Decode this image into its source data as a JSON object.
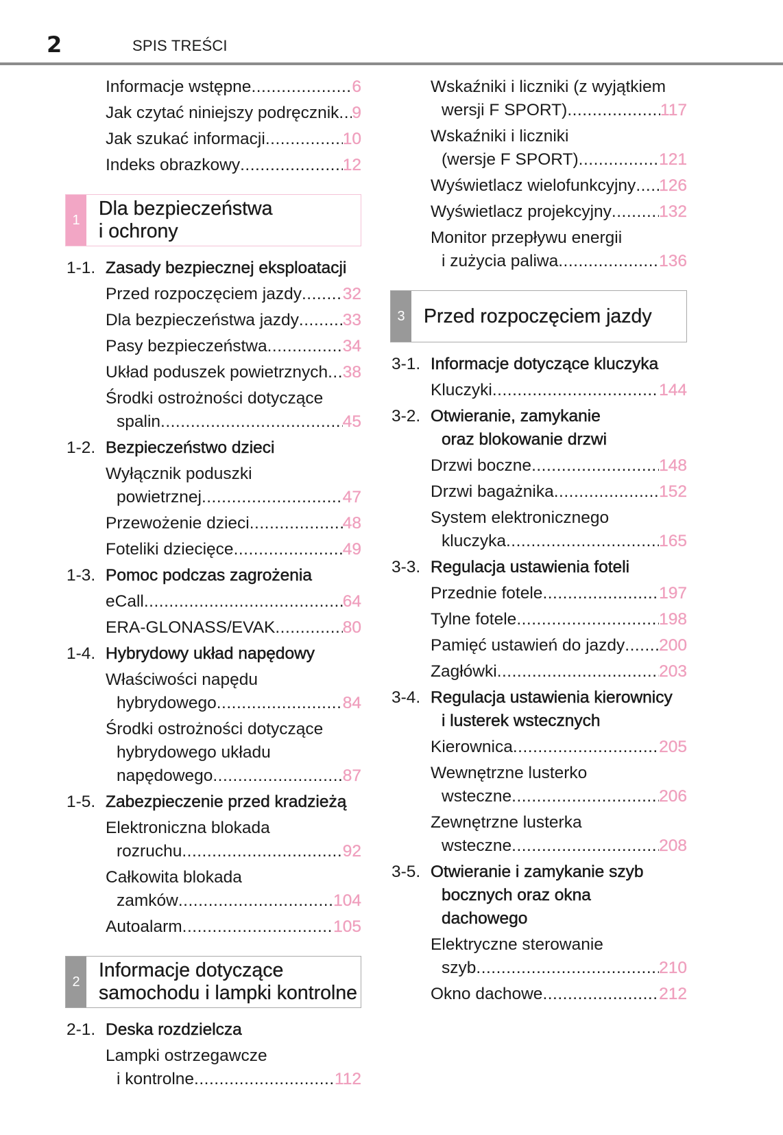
{
  "header": {
    "page_number": "2",
    "title": "SPIS TREŚCI"
  },
  "colors": {
    "accent_pink": "#ef9fbd",
    "section_gray": "#999999",
    "rule": "#8c8c8c"
  },
  "columns": [
    [
      {
        "type": "entry",
        "lines": [
          "Informacje wstępne"
        ],
        "page": "6"
      },
      {
        "type": "entry",
        "lines": [
          "Jak czytać niniejszy podręcznik"
        ],
        "page": "9"
      },
      {
        "type": "entry",
        "lines": [
          "Jak szukać informacji"
        ],
        "page": "10"
      },
      {
        "type": "entry",
        "lines": [
          "Indeks obrazkowy"
        ],
        "page": "12"
      },
      {
        "type": "box",
        "num": "1",
        "color": "#f2a6c5",
        "border": "#f5c3d7",
        "lines": [
          "Dla bezpieczeństwa",
          "i ochrony"
        ]
      },
      {
        "type": "heading",
        "num": "1-1.",
        "lines": [
          "Zasady bezpiecznej eksploatacji"
        ]
      },
      {
        "type": "entry",
        "lines": [
          "Przed rozpoczęciem jazdy"
        ],
        "page": "32"
      },
      {
        "type": "entry",
        "lines": [
          "Dla bezpieczeństwa jazdy"
        ],
        "page": "33"
      },
      {
        "type": "entry",
        "lines": [
          "Pasy bezpieczeństwa"
        ],
        "page": "34"
      },
      {
        "type": "entry",
        "lines": [
          "Układ poduszek powietrznych"
        ],
        "page": "38"
      },
      {
        "type": "entry",
        "lines": [
          "Środki ostrożności dotyczące",
          "spalin"
        ],
        "page": "45"
      },
      {
        "type": "heading",
        "num": "1-2.",
        "lines": [
          "Bezpieczeństwo dzieci"
        ]
      },
      {
        "type": "entry",
        "lines": [
          "Wyłącznik poduszki",
          "powietrznej"
        ],
        "page": "47"
      },
      {
        "type": "entry",
        "lines": [
          "Przewożenie dzieci"
        ],
        "page": "48"
      },
      {
        "type": "entry",
        "lines": [
          "Foteliki dziecięce"
        ],
        "page": "49"
      },
      {
        "type": "heading",
        "num": "1-3.",
        "lines": [
          "Pomoc podczas zagrożenia"
        ]
      },
      {
        "type": "entry",
        "lines": [
          "eCall"
        ],
        "page": "64"
      },
      {
        "type": "entry",
        "lines": [
          "ERA-GLONASS/EVAK"
        ],
        "page": "80"
      },
      {
        "type": "heading",
        "num": "1-4.",
        "lines": [
          "Hybrydowy układ napędowy"
        ]
      },
      {
        "type": "entry",
        "lines": [
          "Właściwości napędu",
          "hybrydowego"
        ],
        "page": "84"
      },
      {
        "type": "entry",
        "lines": [
          "Środki ostrożności dotyczące",
          "hybrydowego układu",
          "napędowego"
        ],
        "page": "87"
      },
      {
        "type": "heading",
        "num": "1-5.",
        "lines": [
          "Zabezpieczenie przed kradzieżą"
        ]
      },
      {
        "type": "entry",
        "lines": [
          "Elektroniczna blokada",
          "rozruchu"
        ],
        "page": "92"
      },
      {
        "type": "entry",
        "lines": [
          "Całkowita blokada",
          "zamków"
        ],
        "page": "104"
      },
      {
        "type": "entry",
        "lines": [
          "Autoalarm"
        ],
        "page": "105"
      },
      {
        "type": "box",
        "num": "2",
        "color": "#999999",
        "border": "#aaaaaa",
        "lines": [
          "Informacje dotyczące",
          "samochodu i lampki kontrolne"
        ]
      },
      {
        "type": "heading",
        "num": "2-1.",
        "lines": [
          "Deska rozdzielcza"
        ]
      },
      {
        "type": "entry",
        "lines": [
          "Lampki ostrzegawcze",
          "i kontrolne"
        ],
        "page": "112"
      }
    ],
    [
      {
        "type": "entry",
        "lines": [
          "Wskaźniki i liczniki (z wyjątkiem",
          "wersji F SPORT)"
        ],
        "page": "117"
      },
      {
        "type": "entry",
        "lines": [
          "Wskaźniki i liczniki",
          "(wersje F SPORT)"
        ],
        "page": "121"
      },
      {
        "type": "entry",
        "lines": [
          "Wyświetlacz wielofunkcyjny"
        ],
        "page": "126"
      },
      {
        "type": "entry",
        "lines": [
          "Wyświetlacz projekcyjny"
        ],
        "page": "132"
      },
      {
        "type": "entry",
        "lines": [
          "Monitor przepływu energii",
          "i zużycia paliwa"
        ],
        "page": "136"
      },
      {
        "type": "box",
        "num": "3",
        "color": "#999999",
        "border": "#aaaaaa",
        "lines": [
          "Przed rozpoczęciem jazdy"
        ]
      },
      {
        "type": "heading",
        "num": "3-1.",
        "lines": [
          "Informacje dotyczące kluczyka"
        ]
      },
      {
        "type": "entry",
        "lines": [
          "Kluczyki"
        ],
        "page": "144"
      },
      {
        "type": "heading",
        "num": "3-2.",
        "lines": [
          "Otwieranie, zamykanie",
          "oraz blokowanie drzwi"
        ]
      },
      {
        "type": "entry",
        "lines": [
          "Drzwi boczne"
        ],
        "page": "148"
      },
      {
        "type": "entry",
        "lines": [
          "Drzwi bagażnika"
        ],
        "page": "152"
      },
      {
        "type": "entry",
        "lines": [
          "System elektronicznego",
          "kluczyka"
        ],
        "page": "165"
      },
      {
        "type": "heading",
        "num": "3-3.",
        "lines": [
          "Regulacja ustawienia foteli"
        ]
      },
      {
        "type": "entry",
        "lines": [
          "Przednie fotele"
        ],
        "page": "197"
      },
      {
        "type": "entry",
        "lines": [
          "Tylne fotele"
        ],
        "page": "198"
      },
      {
        "type": "entry",
        "lines": [
          "Pamięć ustawień do jazdy"
        ],
        "page": "200"
      },
      {
        "type": "entry",
        "lines": [
          "Zagłówki"
        ],
        "page": "203"
      },
      {
        "type": "heading",
        "num": "3-4.",
        "lines": [
          "Regulacja ustawienia kierownicy",
          "i lusterek wstecznych"
        ]
      },
      {
        "type": "entry",
        "lines": [
          "Kierownica"
        ],
        "page": "205"
      },
      {
        "type": "entry",
        "lines": [
          "Wewnętrzne lusterko",
          "wsteczne"
        ],
        "page": "206"
      },
      {
        "type": "entry",
        "lines": [
          "Zewnętrzne lusterka",
          "wsteczne"
        ],
        "page": "208"
      },
      {
        "type": "heading",
        "num": "3-5.",
        "lines": [
          "Otwieranie i zamykanie szyb",
          "bocznych oraz okna",
          "dachowego"
        ]
      },
      {
        "type": "entry",
        "lines": [
          "Elektryczne sterowanie",
          "szyb"
        ],
        "page": "210"
      },
      {
        "type": "entry",
        "lines": [
          "Okno dachowe"
        ],
        "page": "212"
      }
    ]
  ]
}
